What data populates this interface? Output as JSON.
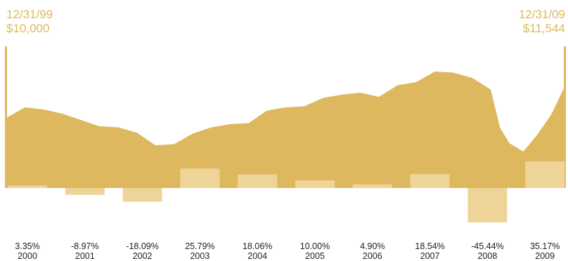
{
  "chart_data": {
    "type": "area",
    "title": "",
    "start": {
      "date": "12/31/99",
      "value": "$10,000"
    },
    "end": {
      "date": "12/31/09",
      "value": "$11,544"
    },
    "colors": {
      "area": "#deb85e",
      "bars": "#efd49a",
      "labels": "#e0b85a",
      "text": "#222222"
    },
    "growth_series": {
      "x": [
        "1999-12",
        "2000-04",
        "2000-08",
        "2000-12",
        "2001-04",
        "2001-08",
        "2001-12",
        "2002-04",
        "2002-08",
        "2002-12",
        "2003-04",
        "2003-08",
        "2003-12",
        "2004-04",
        "2004-08",
        "2004-12",
        "2005-04",
        "2005-08",
        "2005-12",
        "2006-04",
        "2006-08",
        "2006-12",
        "2007-04",
        "2007-08",
        "2007-12",
        "2008-04",
        "2008-08",
        "2008-10",
        "2008-12",
        "2009-03",
        "2009-06",
        "2009-09",
        "2009-12"
      ],
      "values": [
        10000,
        10500,
        10400,
        10200,
        9900,
        9600,
        9550,
        9300,
        8700,
        8750,
        9250,
        9550,
        9700,
        9750,
        10350,
        10500,
        10550,
        10950,
        11100,
        11200,
        11000,
        11550,
        11700,
        12200,
        12150,
        11900,
        11350,
        9550,
        8800,
        8400,
        9200,
        10150,
        11544
      ]
    },
    "annual_returns": {
      "categories": [
        "2000",
        "2001",
        "2002",
        "2003",
        "2004",
        "2005",
        "2006",
        "2007",
        "2008",
        "2009"
      ],
      "values": [
        3.35,
        -8.97,
        -18.09,
        25.79,
        18.06,
        10.0,
        4.9,
        18.54,
        -45.44,
        35.17
      ],
      "labels": [
        "3.35%",
        "-8.97%",
        "-18.09%",
        "25.79%",
        "18.06%",
        "10.00%",
        "4.90%",
        "18.54%",
        "-45.44%",
        "35.17%"
      ]
    }
  }
}
